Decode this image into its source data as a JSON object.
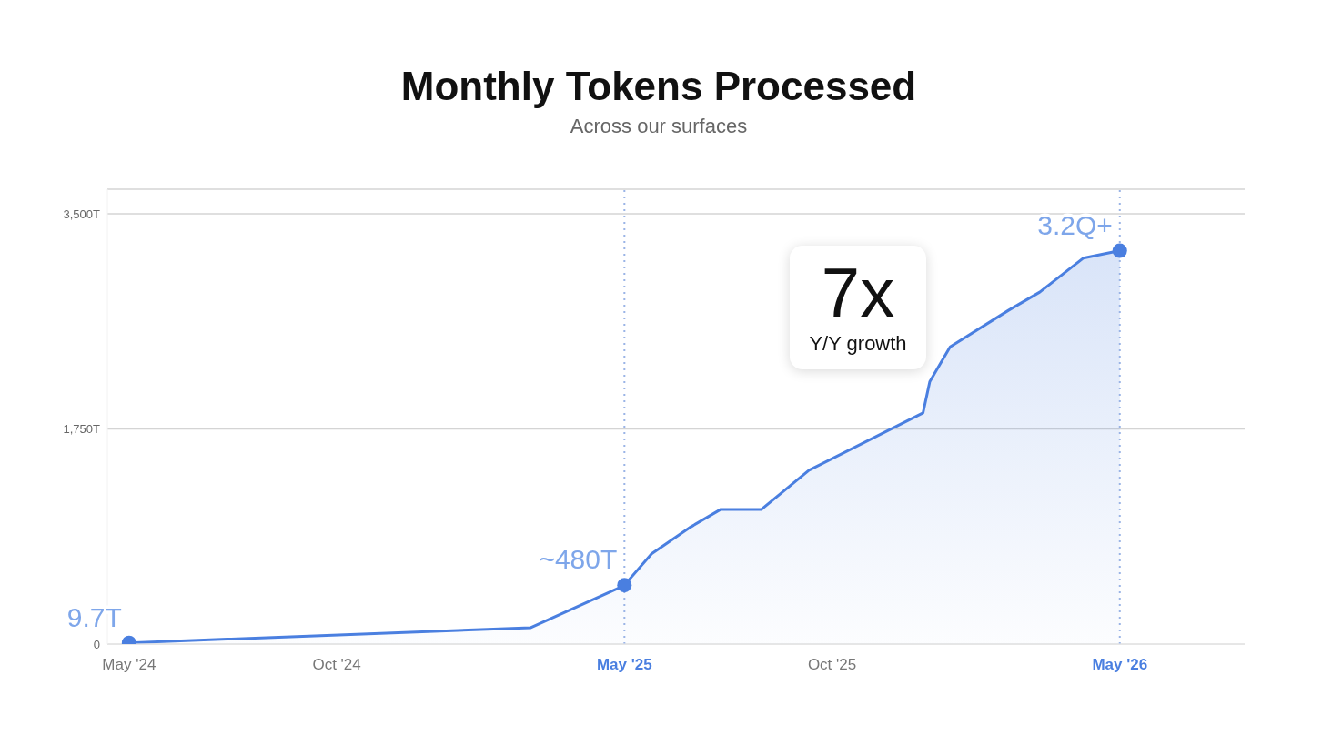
{
  "chart_data": {
    "type": "area",
    "title": "Monthly Tokens Processed",
    "subtitle": "Across our surfaces",
    "series": [
      {
        "color": "#4a7fe0",
        "x": [
          "2024-05-01",
          "2025-02-21",
          "2025-04-26",
          "2025-05-01",
          "2025-05-21",
          "2025-06-19",
          "2025-07-11",
          "2025-08-10",
          "2025-09-14",
          "2025-12-07",
          "2025-12-12",
          "2025-12-27",
          "2026-02-08",
          "2026-03-03",
          "2026-04-04",
          "2026-05-01"
        ],
        "values": [
          9.7,
          134,
          452,
          480,
          735,
          954,
          1096,
          1096,
          1414,
          1880,
          2135,
          2418,
          2715,
          2863,
          3139,
          3200
        ]
      },
      {
        "type": "scatter",
        "color": "#4a7fe0",
        "x": [
          "2024-05-01",
          "2025-05-01",
          "2026-05-01"
        ],
        "values": [
          9.7,
          480,
          3200
        ]
      }
    ],
    "xlim": [
      "2024-04-15",
      "2026-08-01"
    ],
    "xticks": [
      {
        "value": "2024-05",
        "label": "May '24"
      },
      {
        "value": "2024-10",
        "label": "Oct '24"
      },
      {
        "value": "2025-05",
        "label": "May '25"
      },
      {
        "value": "2025-10",
        "label": "Oct '25"
      },
      {
        "value": "2026-05",
        "label": "May '26"
      }
    ],
    "ylim": [
      0,
      3700
    ],
    "yticks": [
      0,
      {
        "value": 1750,
        "label": "1,750T"
      },
      {
        "value": 3500,
        "label": "3,500T"
      }
    ],
    "grid": "y",
    "line_style": "solid",
    "ref_lines": [
      {
        "axis": "x",
        "value": "2025-05-01",
        "label": null,
        "line_style": "dotted",
        "color": "#9ab4e6"
      },
      {
        "axis": "x",
        "value": "2026-05-01",
        "label": null,
        "line_style": "dotted",
        "color": "#9ab4e6"
      }
    ],
    "annotations": [
      {
        "text": "9.7T",
        "x": "2024-05-01",
        "y": 9.7
      },
      {
        "text": "~480T",
        "x": "2025-05-01",
        "y": 480
      },
      {
        "text": "3.2Q+",
        "x": "2026-05-01",
        "y": 3200
      },
      "7x",
      "Y/Y growth"
    ]
  }
}
